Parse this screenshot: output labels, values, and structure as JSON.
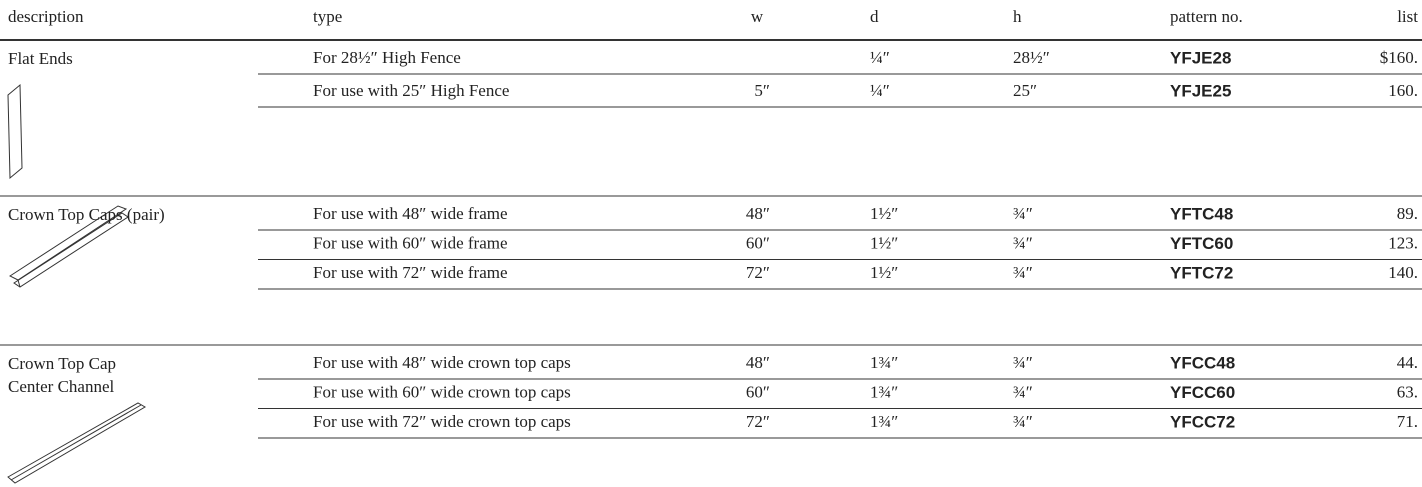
{
  "header": [
    "description",
    "type",
    "w",
    "d",
    "h",
    "pattern no.",
    "list"
  ],
  "groups": [
    {
      "description": [
        "Flat Ends"
      ],
      "rows": [
        [
          "For 28½″ High Fence",
          null,
          "¼″",
          "28½″",
          "YFJE28",
          "$160."
        ],
        [
          "For use with 25″ High Fence",
          "5″",
          "¼″",
          "25″",
          "YFJE25",
          "160."
        ]
      ]
    },
    {
      "description": [
        "Crown Top Caps (pair)"
      ],
      "rows": [
        [
          "For use with 48″ wide frame",
          "48″",
          "1½″",
          "¾″",
          "YFTC48",
          "89."
        ],
        [
          "For use with 60″ wide frame",
          "60″",
          "1½″",
          "¾″",
          "YFTC60",
          "123."
        ],
        [
          "For use with 72″ wide frame",
          "72″",
          "1½″",
          "¾″",
          "YFTC72",
          "140."
        ]
      ]
    },
    {
      "description": [
        "Crown Top Cap",
        "Center Channel"
      ],
      "rows": [
        [
          "For use with 48″ wide crown top caps",
          "48″",
          "1¾″",
          "¾″",
          "YFCC48",
          "44."
        ],
        [
          "For use with 60″ wide crown top caps",
          "60″",
          "1¾″",
          "¾″",
          "YFCC60",
          "63."
        ],
        [
          "For use with 72″ wide crown top caps",
          "72″",
          "1¾″",
          "¾″",
          "YFCC72",
          "71."
        ]
      ]
    }
  ]
}
